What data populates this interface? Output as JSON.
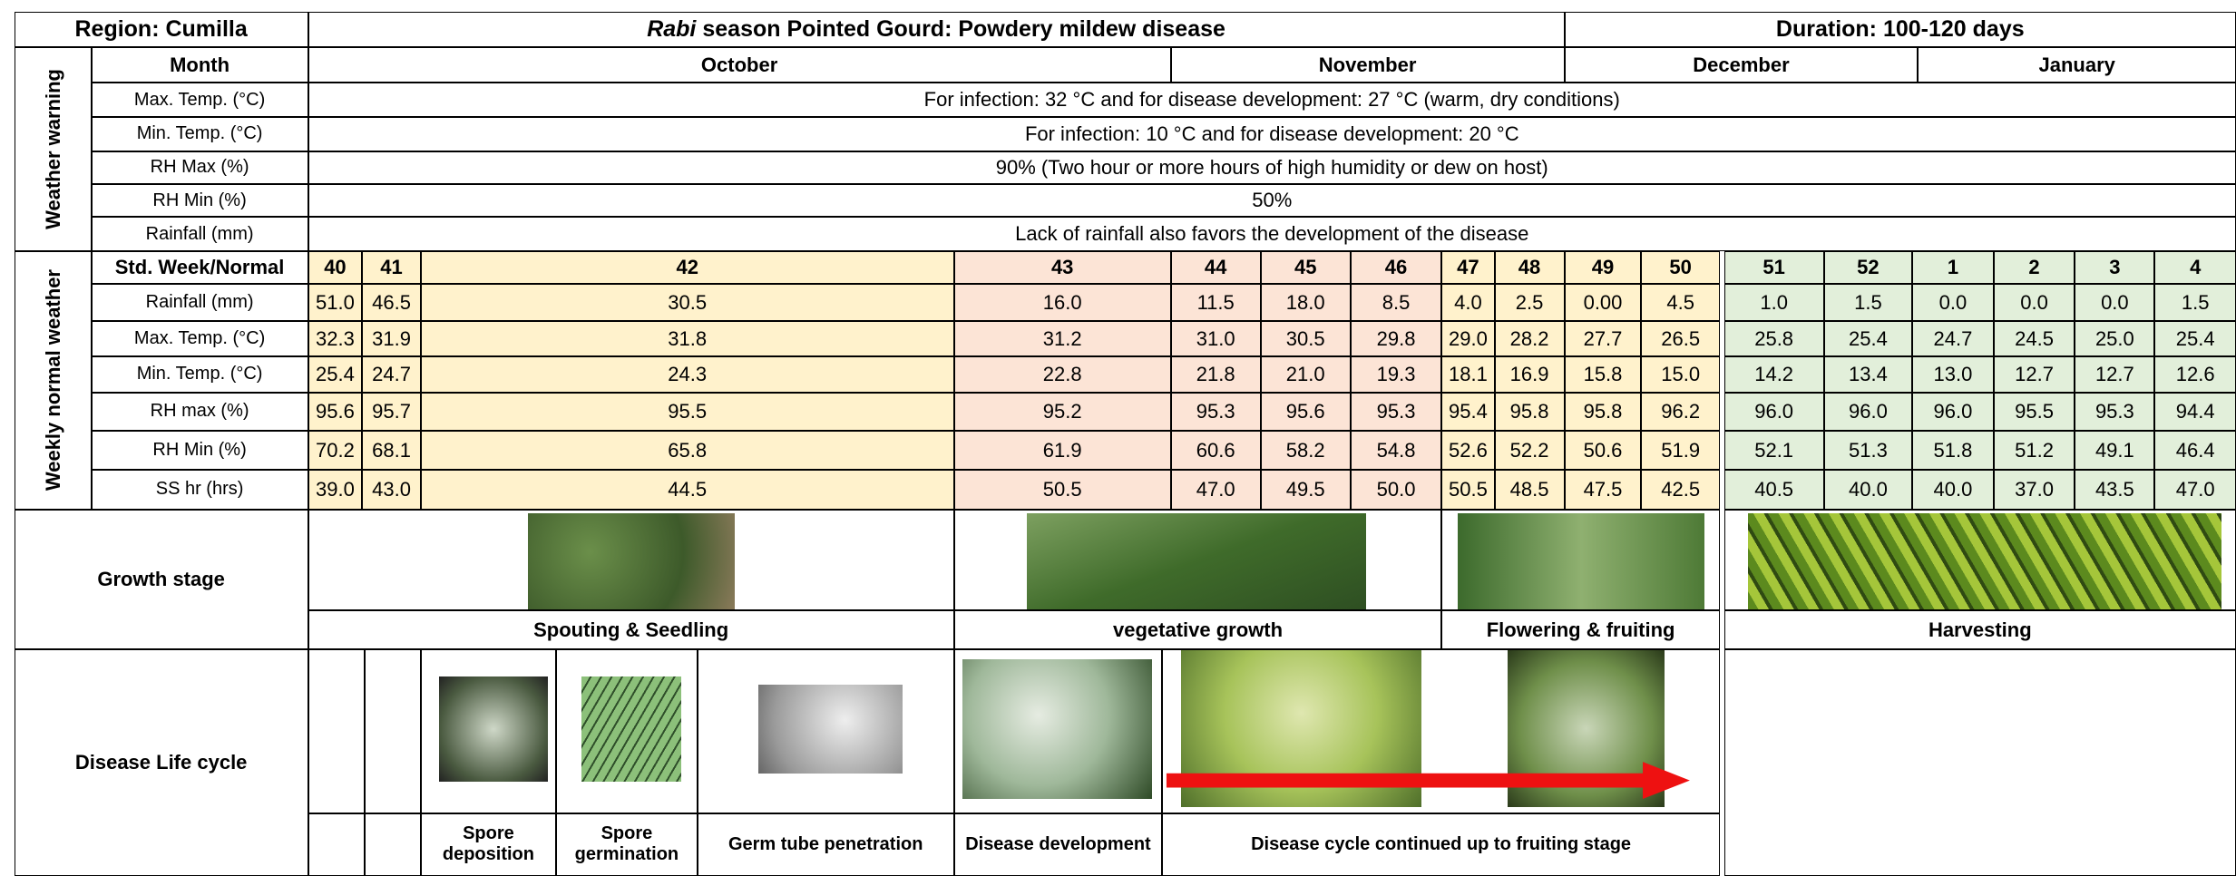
{
  "header": {
    "region": "Region: Cumilla",
    "title_italic": "Rabi",
    "title": "season Pointed Gourd: Powdery mildew disease",
    "duration": "Duration: 100-120 days"
  },
  "weather_warning": {
    "label": "Weather warning",
    "month_label": "Month",
    "months": [
      "October",
      "November",
      "December",
      "January"
    ],
    "rows": [
      {
        "label": "Max. Temp. (°C)",
        "text": "For infection: 32 °C and for disease development: 27 °C (warm, dry conditions)"
      },
      {
        "label": "Min. Temp. (°C)",
        "text": "For infection: 10 °C and for disease development: 20 °C"
      },
      {
        "label": "RH Max (%)",
        "text": "90% (Two hour or more hours of high humidity or dew on host)"
      },
      {
        "label": "RH Min (%)",
        "text": "50%"
      },
      {
        "label": "Rainfall (mm)",
        "text": "Lack of rainfall also favors the development of the disease"
      }
    ]
  },
  "weekly_normal": {
    "label": "Weekly normal weather",
    "week_label": "Std. Week/Normal",
    "weeks": [
      40,
      41,
      42,
      43,
      44,
      45,
      46,
      47,
      48,
      49,
      50,
      51,
      52,
      1,
      2,
      3,
      4
    ],
    "rows": [
      {
        "label": "Rainfall (mm)",
        "values": [
          "51.0",
          "46.5",
          "30.5",
          "16.0",
          "11.5",
          "18.0",
          "8.5",
          "4.0",
          "2.5",
          "0.00",
          "4.5",
          "1.0",
          "1.5",
          "0.0",
          "0.0",
          "0.0",
          "1.5"
        ]
      },
      {
        "label": "Max. Temp. (°C)",
        "values": [
          "32.3",
          "31.9",
          "31.8",
          "31.2",
          "31.0",
          "30.5",
          "29.8",
          "29.0",
          "28.2",
          "27.7",
          "26.5",
          "25.8",
          "25.4",
          "24.7",
          "24.5",
          "25.0",
          "25.4"
        ]
      },
      {
        "label": "Min. Temp. (°C)",
        "values": [
          "25.4",
          "24.7",
          "24.3",
          "22.8",
          "21.8",
          "21.0",
          "19.3",
          "18.1",
          "16.9",
          "15.8",
          "15.0",
          "14.2",
          "13.4",
          "13.0",
          "12.7",
          "12.7",
          "12.6"
        ]
      },
      {
        "label": "RH max (%)",
        "values": [
          "95.6",
          "95.7",
          "95.5",
          "95.2",
          "95.3",
          "95.6",
          "95.3",
          "95.4",
          "95.8",
          "95.8",
          "96.2",
          "96.0",
          "96.0",
          "96.0",
          "95.5",
          "95.3",
          "94.4"
        ]
      },
      {
        "label": "RH Min (%)",
        "values": [
          "70.2",
          "68.1",
          "65.8",
          "61.9",
          "60.6",
          "58.2",
          "54.8",
          "52.6",
          "52.2",
          "50.6",
          "51.9",
          "52.1",
          "51.3",
          "51.8",
          "51.2",
          "49.1",
          "46.4"
        ]
      },
      {
        "label": "SS hr (hrs)",
        "values": [
          "39.0",
          "43.0",
          "44.5",
          "50.5",
          "47.0",
          "49.5",
          "50.0",
          "50.5",
          "48.5",
          "47.5",
          "42.5",
          "40.5",
          "40.0",
          "40.0",
          "37.0",
          "43.5",
          "47.0"
        ]
      }
    ]
  },
  "growth_stage": {
    "label": "Growth stage",
    "stages": [
      "Spouting & Seedling",
      "vegetative growth",
      "Flowering & fruiting",
      "Harvesting"
    ]
  },
  "disease_life_cycle": {
    "label": "Disease Life cycle",
    "stages": [
      "Spore deposition",
      "Spore germination",
      "Germ tube penetration",
      "Disease development",
      "Disease cycle continued up to fruiting stage"
    ]
  }
}
